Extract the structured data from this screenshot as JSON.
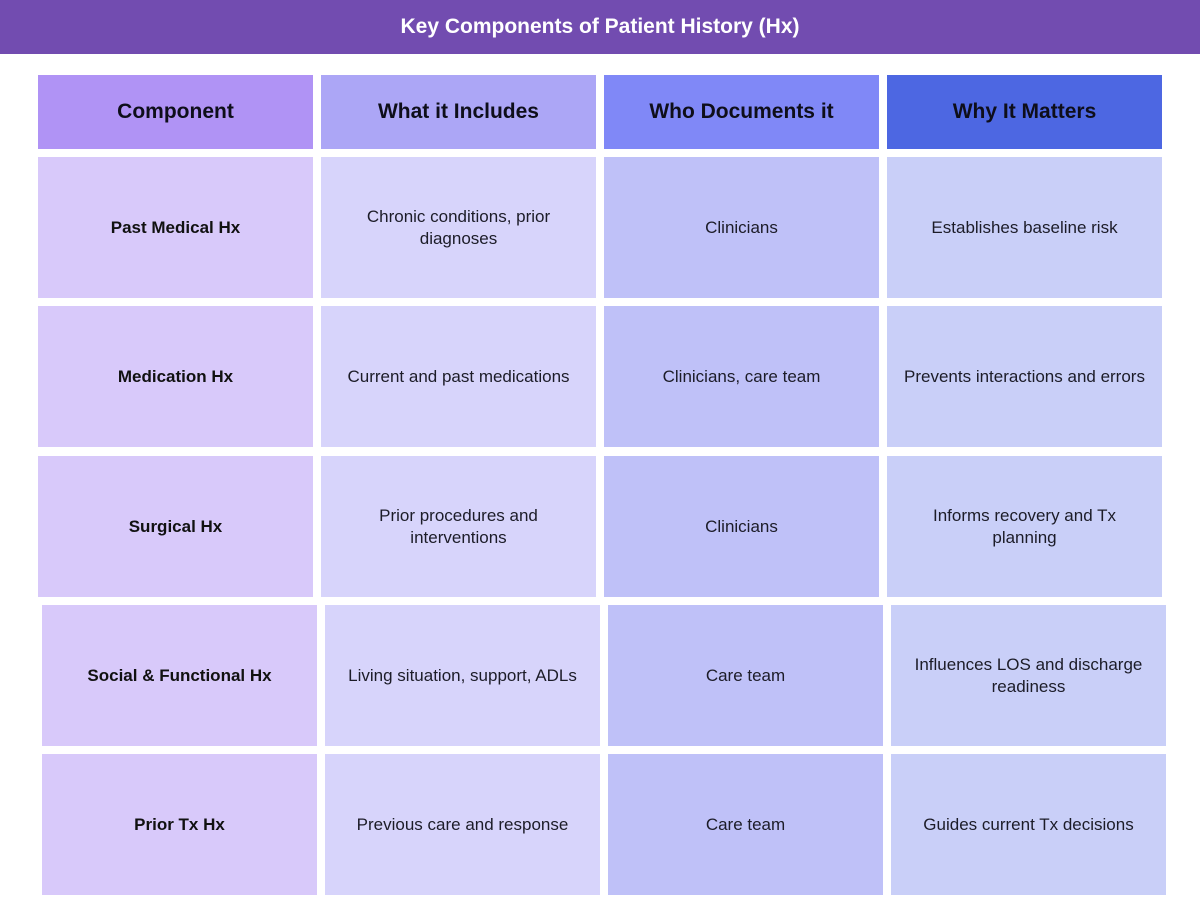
{
  "title": "Key Components of Patient History (Hx)",
  "colors": {
    "title_bar": "#724cb0",
    "header": [
      "#b093f5",
      "#aca6f6",
      "#8088f7",
      "#4d67e2"
    ],
    "body": [
      "#d8c9fa",
      "#d7d4fb",
      "#bfc1f8",
      "#c9cff8"
    ]
  },
  "table": {
    "headers": [
      "Component",
      "What it Includes",
      "Who Documents it",
      "Why It Matters"
    ],
    "rows": [
      [
        "Past Medical Hx",
        "Chronic conditions, prior diagnoses",
        "Clinicians",
        "Establishes baseline risk"
      ],
      [
        "Medication Hx",
        "Current and past medications",
        "Clinicians, care team",
        "Prevents interactions and errors"
      ],
      [
        "Surgical Hx",
        "Prior procedures and interventions",
        "Clinicians",
        "Informs recovery and Tx planning"
      ],
      [
        "Social & Functional Hx",
        "Living situation, support, ADLs",
        "Care team",
        "Influences LOS and discharge readiness"
      ],
      [
        "Prior Tx Hx",
        "Previous care and response",
        "Care team",
        "Guides current Tx decisions"
      ]
    ]
  }
}
